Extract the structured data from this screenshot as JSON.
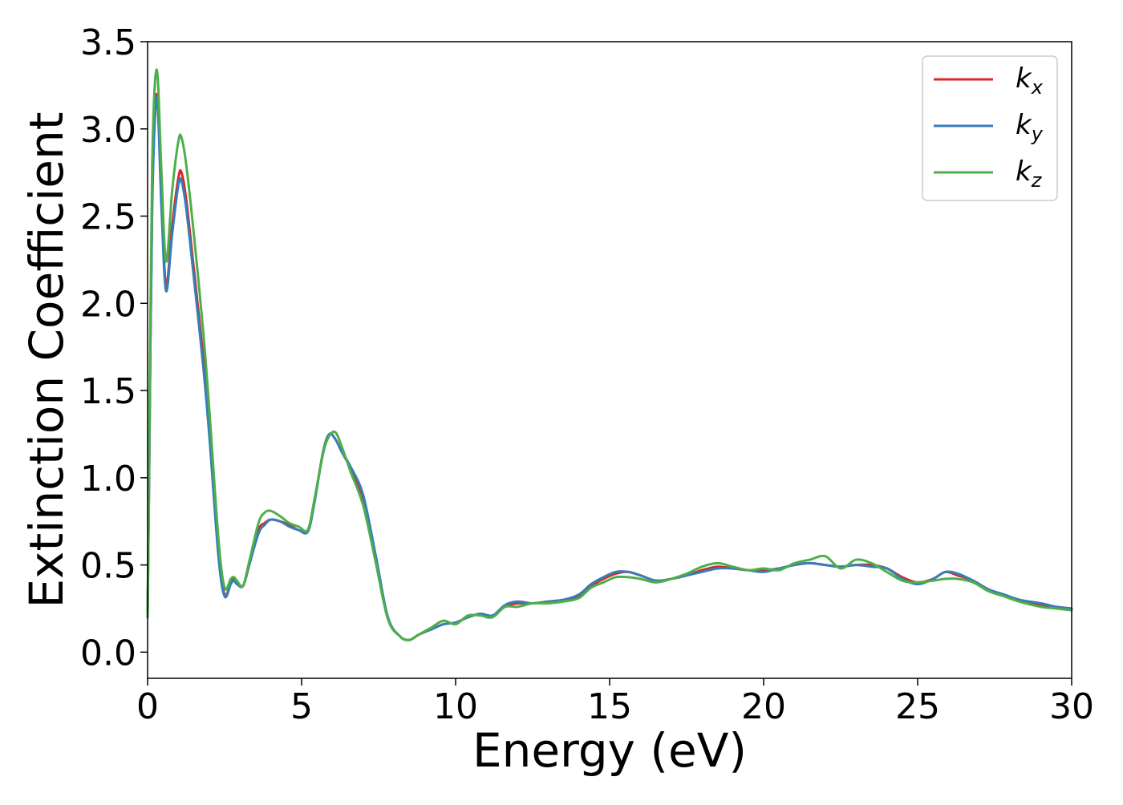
{
  "chart_data": {
    "type": "line",
    "title": "",
    "xlabel": "Energy (eV)",
    "ylabel": "Extinction Coefficient",
    "xlim": [
      0,
      30
    ],
    "ylim": [
      -0.15,
      3.5
    ],
    "xticks": [
      0,
      5,
      10,
      15,
      20,
      25,
      30
    ],
    "yticks": [
      0.0,
      0.5,
      1.0,
      1.5,
      2.0,
      2.5,
      3.0,
      3.5
    ],
    "xtick_labels": [
      "0",
      "5",
      "10",
      "15",
      "20",
      "25",
      "30"
    ],
    "ytick_labels": [
      "0.0",
      "0.5",
      "1.0",
      "1.5",
      "2.0",
      "2.5",
      "3.0",
      "3.5"
    ],
    "grid": false,
    "legend_position": "top-right",
    "series": [
      {
        "name": "k_x",
        "label_base": "k",
        "label_sub": "x",
        "color": "#d62728",
        "x": [
          0,
          0.05,
          0.15,
          0.3,
          0.45,
          0.6,
          0.8,
          1.0,
          1.1,
          1.25,
          1.5,
          1.8,
          2.0,
          2.3,
          2.5,
          2.7,
          2.8,
          2.9,
          3.1,
          3.3,
          3.6,
          3.8,
          4.0,
          4.3,
          4.6,
          4.9,
          5.2,
          5.4,
          5.7,
          5.9,
          6.1,
          6.3,
          6.6,
          7.0,
          7.4,
          7.8,
          8.2,
          8.5,
          8.8,
          9.2,
          9.6,
          10.0,
          10.4,
          10.8,
          11.2,
          11.6,
          12.0,
          12.5,
          13.0,
          13.5,
          14.0,
          14.4,
          14.8,
          15.2,
          15.6,
          16.0,
          16.5,
          17.0,
          17.5,
          18.0,
          18.5,
          19.0,
          19.5,
          20.0,
          20.5,
          21.0,
          21.5,
          22.0,
          22.5,
          23.0,
          23.5,
          24.0,
          24.5,
          25.0,
          25.5,
          25.9,
          26.3,
          26.8,
          27.3,
          27.8,
          28.3,
          29.0,
          29.5,
          30.0
        ],
        "values": [
          0.2,
          1.0,
          2.6,
          3.2,
          2.6,
          2.1,
          2.45,
          2.72,
          2.75,
          2.6,
          2.2,
          1.7,
          1.3,
          0.6,
          0.33,
          0.4,
          0.42,
          0.4,
          0.38,
          0.5,
          0.7,
          0.74,
          0.76,
          0.75,
          0.73,
          0.7,
          0.7,
          0.85,
          1.15,
          1.25,
          1.22,
          1.15,
          1.05,
          0.88,
          0.55,
          0.2,
          0.09,
          0.07,
          0.1,
          0.13,
          0.16,
          0.17,
          0.2,
          0.22,
          0.21,
          0.26,
          0.28,
          0.28,
          0.29,
          0.3,
          0.32,
          0.38,
          0.42,
          0.45,
          0.46,
          0.44,
          0.41,
          0.42,
          0.44,
          0.47,
          0.49,
          0.48,
          0.47,
          0.47,
          0.48,
          0.5,
          0.51,
          0.5,
          0.49,
          0.5,
          0.5,
          0.48,
          0.43,
          0.4,
          0.42,
          0.46,
          0.44,
          0.41,
          0.36,
          0.33,
          0.3,
          0.27,
          0.26,
          0.25
        ]
      },
      {
        "name": "k_y",
        "label_base": "k",
        "label_sub": "y",
        "color": "#377eb8",
        "x": [
          0,
          0.05,
          0.15,
          0.3,
          0.45,
          0.6,
          0.8,
          1.0,
          1.1,
          1.25,
          1.5,
          1.8,
          2.0,
          2.3,
          2.5,
          2.7,
          2.8,
          2.9,
          3.1,
          3.3,
          3.6,
          3.8,
          4.0,
          4.3,
          4.6,
          4.9,
          5.2,
          5.4,
          5.7,
          5.9,
          6.1,
          6.3,
          6.6,
          7.0,
          7.4,
          7.8,
          8.2,
          8.5,
          8.8,
          9.2,
          9.6,
          10.0,
          10.4,
          10.8,
          11.2,
          11.6,
          12.0,
          12.5,
          13.0,
          13.5,
          14.0,
          14.4,
          14.8,
          15.2,
          15.6,
          16.0,
          16.5,
          17.0,
          17.5,
          18.0,
          18.5,
          19.0,
          19.5,
          20.0,
          20.5,
          21.0,
          21.5,
          22.0,
          22.5,
          23.0,
          23.5,
          24.0,
          24.5,
          25.0,
          25.5,
          25.9,
          26.3,
          26.8,
          27.3,
          27.8,
          28.3,
          29.0,
          29.5,
          30.0
        ],
        "values": [
          0.2,
          1.0,
          2.55,
          3.18,
          2.55,
          2.07,
          2.4,
          2.68,
          2.7,
          2.55,
          2.15,
          1.65,
          1.25,
          0.55,
          0.32,
          0.39,
          0.41,
          0.39,
          0.38,
          0.5,
          0.68,
          0.73,
          0.76,
          0.75,
          0.72,
          0.7,
          0.69,
          0.84,
          1.15,
          1.25,
          1.22,
          1.15,
          1.06,
          0.9,
          0.56,
          0.2,
          0.09,
          0.07,
          0.1,
          0.13,
          0.16,
          0.17,
          0.2,
          0.22,
          0.21,
          0.27,
          0.29,
          0.28,
          0.29,
          0.3,
          0.33,
          0.39,
          0.43,
          0.46,
          0.46,
          0.44,
          0.41,
          0.42,
          0.44,
          0.46,
          0.48,
          0.48,
          0.47,
          0.46,
          0.48,
          0.5,
          0.51,
          0.5,
          0.49,
          0.5,
          0.49,
          0.48,
          0.42,
          0.39,
          0.42,
          0.46,
          0.45,
          0.41,
          0.36,
          0.33,
          0.3,
          0.28,
          0.26,
          0.25
        ]
      },
      {
        "name": "k_z",
        "label_base": "k",
        "label_sub": "z",
        "color": "#4daf4a",
        "x": [
          0,
          0.05,
          0.15,
          0.3,
          0.45,
          0.6,
          0.8,
          1.0,
          1.1,
          1.25,
          1.5,
          1.8,
          2.0,
          2.3,
          2.5,
          2.7,
          2.8,
          2.9,
          3.1,
          3.3,
          3.6,
          3.8,
          4.0,
          4.3,
          4.6,
          4.9,
          5.2,
          5.4,
          5.7,
          5.9,
          6.1,
          6.3,
          6.6,
          7.0,
          7.4,
          7.8,
          8.2,
          8.5,
          8.8,
          9.2,
          9.6,
          10.0,
          10.4,
          10.8,
          11.2,
          11.6,
          12.0,
          12.5,
          13.0,
          13.5,
          14.0,
          14.4,
          14.8,
          15.2,
          15.6,
          16.0,
          16.5,
          17.0,
          17.5,
          18.0,
          18.5,
          19.0,
          19.5,
          20.0,
          20.5,
          21.0,
          21.5,
          22.0,
          22.5,
          23.0,
          23.5,
          24.0,
          24.5,
          25.0,
          25.5,
          25.9,
          26.3,
          26.8,
          27.3,
          27.8,
          28.3,
          29.0,
          29.5,
          30.0
        ],
        "values": [
          0.2,
          1.1,
          2.8,
          3.34,
          2.75,
          2.24,
          2.65,
          2.93,
          2.95,
          2.8,
          2.4,
          1.85,
          1.4,
          0.65,
          0.37,
          0.42,
          0.43,
          0.41,
          0.38,
          0.52,
          0.74,
          0.8,
          0.81,
          0.78,
          0.74,
          0.72,
          0.7,
          0.86,
          1.14,
          1.24,
          1.26,
          1.18,
          1.03,
          0.84,
          0.52,
          0.19,
          0.09,
          0.07,
          0.1,
          0.14,
          0.18,
          0.16,
          0.21,
          0.21,
          0.2,
          0.26,
          0.26,
          0.28,
          0.28,
          0.29,
          0.31,
          0.37,
          0.4,
          0.43,
          0.43,
          0.42,
          0.4,
          0.42,
          0.45,
          0.49,
          0.51,
          0.49,
          0.47,
          0.48,
          0.47,
          0.51,
          0.53,
          0.55,
          0.48,
          0.53,
          0.51,
          0.46,
          0.41,
          0.4,
          0.41,
          0.42,
          0.42,
          0.4,
          0.35,
          0.32,
          0.29,
          0.26,
          0.25,
          0.24
        ]
      }
    ]
  }
}
